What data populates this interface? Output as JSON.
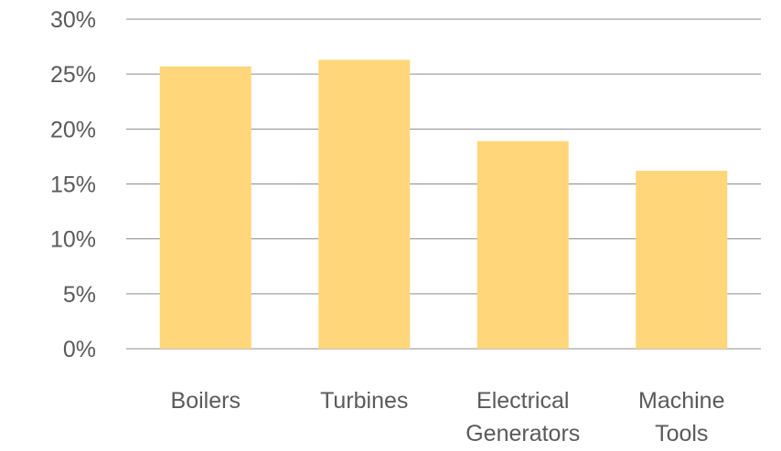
{
  "chart_data": {
    "type": "bar",
    "categories": [
      [
        "Boilers"
      ],
      [
        "Turbines"
      ],
      [
        "Electrical",
        "Generators"
      ],
      [
        "Machine",
        "Tools"
      ]
    ],
    "category_names": [
      "Boilers",
      "Turbines",
      "Electrical Generators",
      "Machine Tools"
    ],
    "values": [
      25.7,
      26.3,
      18.9,
      16.2
    ],
    "ylim": [
      0,
      30
    ],
    "yticks": [
      0,
      5,
      10,
      15,
      20,
      25,
      30
    ],
    "ytick_labels": [
      "0%",
      "5%",
      "10%",
      "15%",
      "20%",
      "25%",
      "30%"
    ],
    "title": "",
    "xlabel": "",
    "ylabel": "",
    "grid": true,
    "bar_color": "#FFD77A",
    "gridline_color": "#8C8C8C",
    "text_color": "#5A5A5A"
  }
}
